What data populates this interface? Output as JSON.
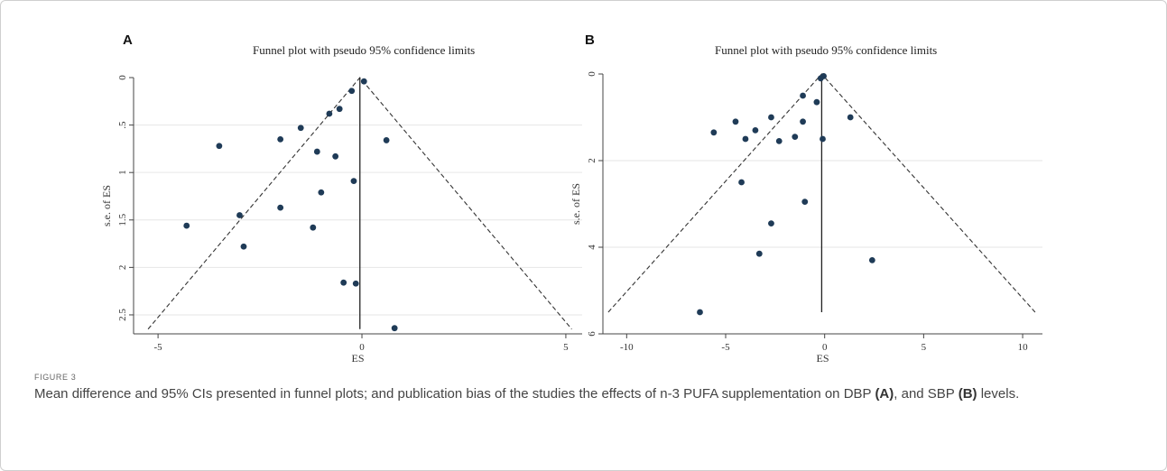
{
  "figure": {
    "label": "FIGURE 3",
    "caption_main": "Mean difference and 95% CIs presented in funnel plots; and publication bias of the studies the effects of n-3 PUFA supplementation on DBP ",
    "caption_a": "(A)",
    "caption_mid": ", and SBP ",
    "caption_b": "(B)",
    "caption_end": " levels."
  },
  "chart_data": [
    {
      "panel": "A",
      "type": "scatter",
      "title": "Funnel plot with pseudo 95% confidence limits",
      "xlabel": "ES",
      "ylabel": "s.e. of ES",
      "xlim": [
        -5.6,
        5.4
      ],
      "ylim": [
        0,
        2.7
      ],
      "y_reversed": true,
      "x_ticks": [
        -5,
        0,
        5
      ],
      "x_tick_labels": [
        "-5",
        "0",
        "5"
      ],
      "y_ticks": [
        0,
        0.5,
        1,
        1.5,
        2,
        2.5
      ],
      "y_tick_labels": [
        "0",
        ".5",
        "1",
        "1.5",
        "2",
        "2.5"
      ],
      "pooled_es": -0.05,
      "funnel_apex_es": -0.05,
      "funnel_slope": 1.96,
      "funnel_ymax": 2.65,
      "grid": "horizontal",
      "points": [
        {
          "x": 0.05,
          "y": 0.04
        },
        {
          "x": -0.25,
          "y": 0.14
        },
        {
          "x": -0.55,
          "y": 0.33
        },
        {
          "x": -0.8,
          "y": 0.38
        },
        {
          "x": -1.5,
          "y": 0.53
        },
        {
          "x": -2.0,
          "y": 0.65
        },
        {
          "x": -3.5,
          "y": 0.72
        },
        {
          "x": 0.6,
          "y": 0.66
        },
        {
          "x": -1.1,
          "y": 0.78
        },
        {
          "x": -0.65,
          "y": 0.83
        },
        {
          "x": -0.2,
          "y": 1.09
        },
        {
          "x": -1.0,
          "y": 1.21
        },
        {
          "x": -2.0,
          "y": 1.37
        },
        {
          "x": -3.0,
          "y": 1.45
        },
        {
          "x": -4.3,
          "y": 1.56
        },
        {
          "x": -1.2,
          "y": 1.58
        },
        {
          "x": -2.9,
          "y": 1.78
        },
        {
          "x": -0.45,
          "y": 2.16
        },
        {
          "x": -0.15,
          "y": 2.17
        },
        {
          "x": 0.8,
          "y": 2.64
        }
      ]
    },
    {
      "panel": "B",
      "type": "scatter",
      "title": "Funnel plot with pseudo 95% confidence limits",
      "xlabel": "ES",
      "ylabel": "s.e. of ES",
      "xlim": [
        -11.2,
        11.0
      ],
      "ylim": [
        0,
        6
      ],
      "y_reversed": true,
      "x_ticks": [
        -10,
        -5,
        0,
        5,
        10
      ],
      "x_tick_labels": [
        "-10",
        "-5",
        "0",
        "5",
        "10"
      ],
      "y_ticks": [
        0,
        2,
        4,
        6
      ],
      "y_tick_labels": [
        "0",
        "2",
        "4",
        "6"
      ],
      "pooled_es": -0.15,
      "funnel_apex_es": -0.15,
      "funnel_slope": 1.96,
      "funnel_ymax": 5.5,
      "grid": "horizontal",
      "points": [
        {
          "x": -0.05,
          "y": 0.05
        },
        {
          "x": -0.2,
          "y": 0.1
        },
        {
          "x": -1.1,
          "y": 0.5
        },
        {
          "x": -0.4,
          "y": 0.65
        },
        {
          "x": -2.7,
          "y": 1.0
        },
        {
          "x": 1.3,
          "y": 1.0
        },
        {
          "x": -4.5,
          "y": 1.1
        },
        {
          "x": -1.1,
          "y": 1.1
        },
        {
          "x": -3.5,
          "y": 1.3
        },
        {
          "x": -5.6,
          "y": 1.35
        },
        {
          "x": -1.5,
          "y": 1.45
        },
        {
          "x": -4.0,
          "y": 1.5
        },
        {
          "x": -2.3,
          "y": 1.55
        },
        {
          "x": -0.1,
          "y": 1.5
        },
        {
          "x": -4.2,
          "y": 2.5
        },
        {
          "x": -1.0,
          "y": 2.95
        },
        {
          "x": -2.7,
          "y": 3.45
        },
        {
          "x": -3.3,
          "y": 4.15
        },
        {
          "x": 2.4,
          "y": 4.3
        },
        {
          "x": -6.3,
          "y": 5.5
        }
      ]
    }
  ]
}
